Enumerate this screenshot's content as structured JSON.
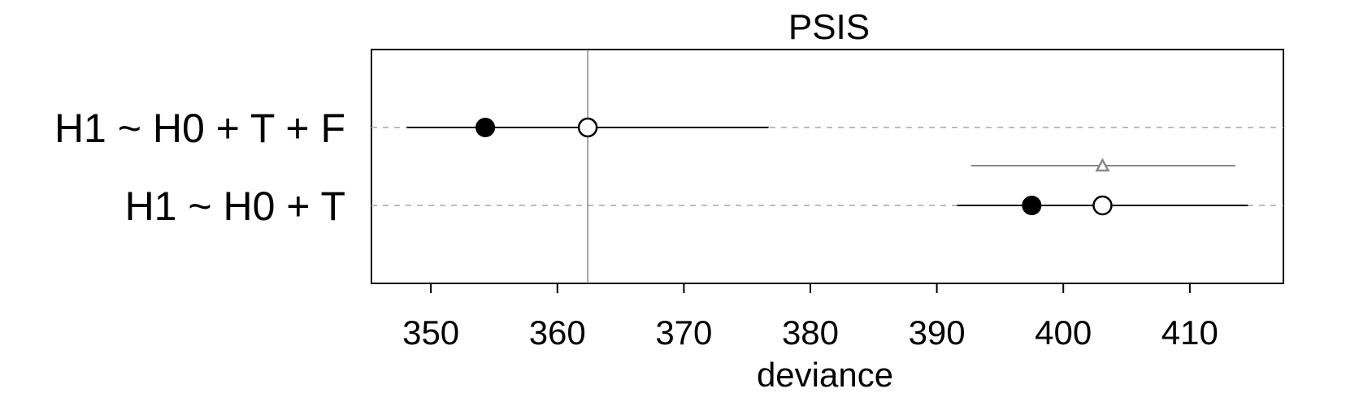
{
  "chart_data": {
    "type": "scatter",
    "title": "PSIS",
    "xlabel": "deviance",
    "ylabel": "",
    "xlim": [
      345.3,
      417.4
    ],
    "x_ticks": [
      350,
      360,
      370,
      380,
      390,
      400,
      410
    ],
    "x_tick_labels": [
      "350",
      "360",
      "370",
      "380",
      "390",
      "400",
      "410"
    ],
    "grid": false,
    "models": [
      {
        "label": "H1 ~ H0 + T + F",
        "in_sample_deviance": 354.3,
        "psis": 362.4,
        "interval": [
          348.1,
          376.7
        ]
      },
      {
        "label": "H1 ~ H0 + T",
        "in_sample_deviance": 397.5,
        "psis": 403.1,
        "interval": [
          391.6,
          414.6
        ],
        "dpsis": 403.1,
        "dpsis_interval": [
          392.7,
          413.6
        ]
      }
    ],
    "reference_line_x": 362.4,
    "colors": {
      "main": "#000000",
      "difference": "#888888",
      "reference_line": "#888888",
      "row_guide": "#bbbbbb"
    },
    "markers": {
      "in_sample": "filled-circle",
      "psis": "open-circle",
      "difference": "open-triangle"
    }
  }
}
